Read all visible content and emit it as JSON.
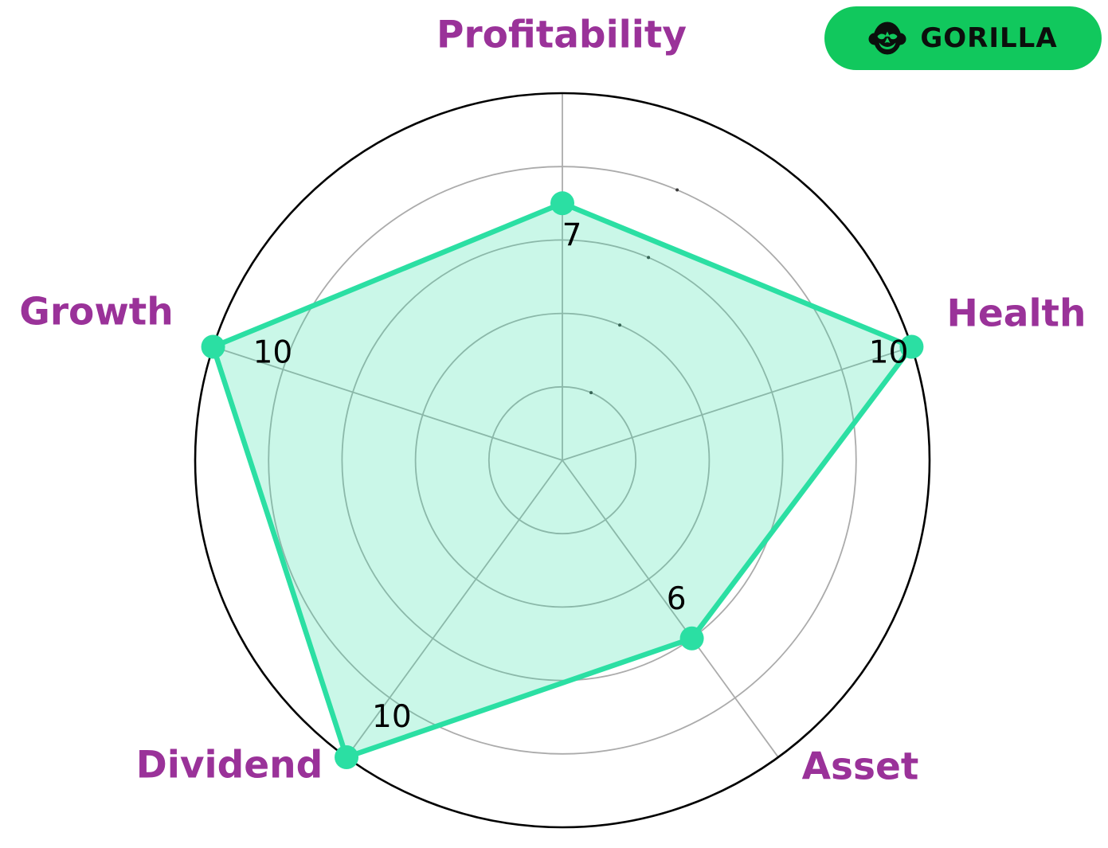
{
  "chart_data": {
    "type": "radar",
    "categories": [
      "Profitability",
      "Health",
      "Asset",
      "Dividend",
      "Growth"
    ],
    "values": [
      7,
      10,
      6,
      10,
      10
    ],
    "rmax": 10,
    "grid_rings": [
      2,
      4,
      6,
      8
    ],
    "grid": true,
    "title": "",
    "legend": null,
    "series": [
      {
        "name": "GORILLA",
        "values": [
          7,
          10,
          6,
          10,
          10
        ]
      }
    ],
    "series_color": "#2bdfa3",
    "fill_opacity": 0.25,
    "grid_color": "#ababab",
    "outer_ring_color": "#000000",
    "category_label_color": "#9a3299",
    "value_label_color": "#000000"
  },
  "badge": {
    "label": "GORILLA",
    "icon": "gorilla-icon",
    "background_color": "#11c85d",
    "text_color": "#0b0f0c"
  }
}
